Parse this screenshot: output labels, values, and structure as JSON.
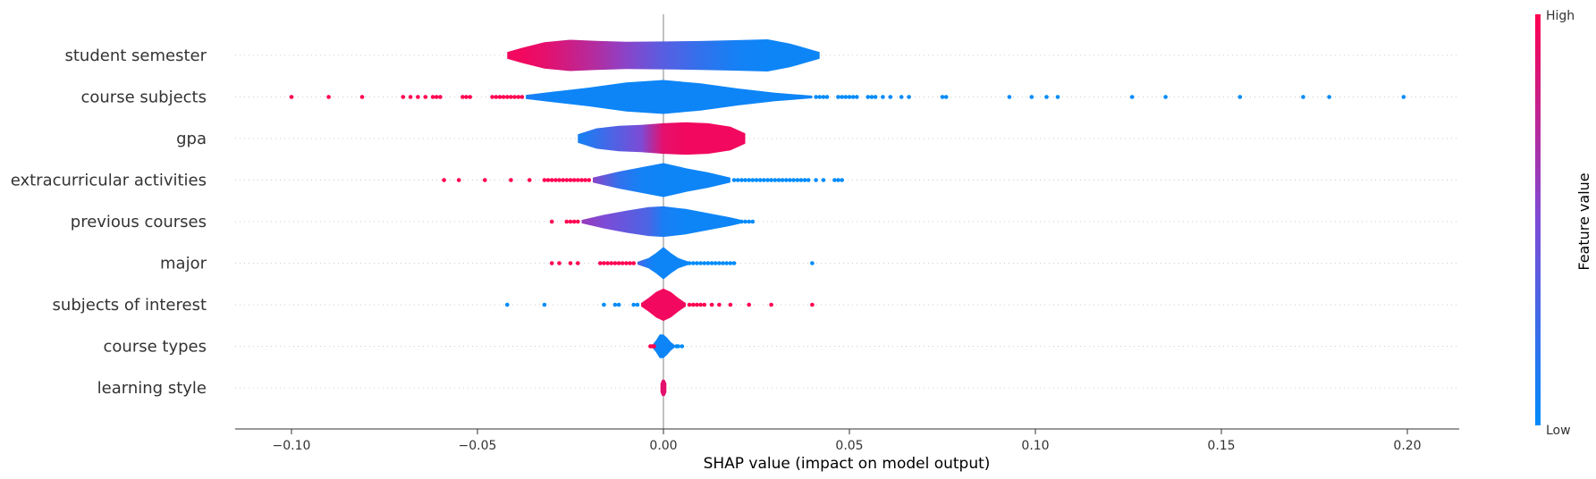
{
  "chart_data": {
    "type": "violin",
    "xlabel": "SHAP value (impact on model output)",
    "xlim": [
      -0.115,
      0.215
    ],
    "x_ticks": [
      "−0.10",
      "−0.05",
      "0.00",
      "0.05",
      "0.10",
      "0.15",
      "0.20"
    ],
    "x_tick_values": [
      -0.1,
      -0.05,
      0.0,
      0.05,
      0.1,
      0.15,
      0.2
    ],
    "colorbar": {
      "high_label": "High",
      "low_label": "Low",
      "title": "Feature value",
      "high_color": "#ff0051",
      "low_color": "#008bfb"
    },
    "features": [
      {
        "name": "student semester",
        "violin": {
          "xs": [
            -0.042,
            -0.038,
            -0.032,
            -0.025,
            -0.018,
            -0.01,
            0.0,
            0.01,
            0.02,
            0.028,
            0.034,
            0.038,
            0.042
          ],
          "widths": [
            0.2,
            0.45,
            0.78,
            0.92,
            0.86,
            0.8,
            0.82,
            0.85,
            0.9,
            0.95,
            0.7,
            0.45,
            0.2
          ],
          "colors": [
            0.95,
            0.95,
            0.9,
            0.8,
            0.7,
            0.55,
            0.35,
            0.2,
            0.08,
            0.05,
            0.05,
            0.05,
            0.05
          ]
        },
        "points": []
      },
      {
        "name": "course subjects",
        "violin": {
          "xs": [
            -0.037,
            -0.03,
            -0.02,
            -0.01,
            0.0,
            0.01,
            0.02,
            0.03,
            0.04
          ],
          "widths": [
            0.12,
            0.3,
            0.55,
            0.85,
            1.0,
            0.8,
            0.5,
            0.25,
            0.08
          ],
          "colors": [
            0.1,
            0.05,
            0.05,
            0.05,
            0.05,
            0.05,
            0.05,
            0.05,
            0.05
          ]
        },
        "points": [
          [
            -0.1,
            1
          ],
          [
            -0.09,
            1
          ],
          [
            -0.081,
            1
          ],
          [
            -0.07,
            1
          ],
          [
            -0.068,
            1
          ],
          [
            -0.066,
            1
          ],
          [
            -0.064,
            1
          ],
          [
            -0.062,
            1
          ],
          [
            -0.061,
            1
          ],
          [
            -0.06,
            1
          ],
          [
            -0.054,
            1
          ],
          [
            -0.053,
            1
          ],
          [
            -0.052,
            1
          ],
          [
            -0.046,
            1
          ],
          [
            -0.045,
            1
          ],
          [
            -0.044,
            1
          ],
          [
            -0.043,
            1
          ],
          [
            -0.042,
            1
          ],
          [
            -0.041,
            1
          ],
          [
            -0.04,
            1
          ],
          [
            -0.039,
            1
          ],
          [
            -0.038,
            1
          ],
          [
            0.041,
            0
          ],
          [
            0.042,
            0
          ],
          [
            0.043,
            0
          ],
          [
            0.044,
            0
          ],
          [
            0.047,
            0
          ],
          [
            0.048,
            0
          ],
          [
            0.049,
            0
          ],
          [
            0.05,
            0
          ],
          [
            0.051,
            0
          ],
          [
            0.052,
            0
          ],
          [
            0.055,
            0
          ],
          [
            0.056,
            0
          ],
          [
            0.057,
            0
          ],
          [
            0.059,
            0
          ],
          [
            0.061,
            0
          ],
          [
            0.064,
            0
          ],
          [
            0.066,
            0
          ],
          [
            0.075,
            0
          ],
          [
            0.076,
            0
          ],
          [
            0.093,
            0
          ],
          [
            0.099,
            0
          ],
          [
            0.103,
            0
          ],
          [
            0.106,
            0
          ],
          [
            0.126,
            0
          ],
          [
            0.135,
            0
          ],
          [
            0.155,
            0
          ],
          [
            0.172,
            0
          ],
          [
            0.179,
            0
          ],
          [
            0.199,
            0
          ]
        ]
      },
      {
        "name": "gpa",
        "violin": {
          "xs": [
            -0.023,
            -0.018,
            -0.012,
            -0.006,
            0.0,
            0.006,
            0.012,
            0.018,
            0.022
          ],
          "widths": [
            0.25,
            0.6,
            0.75,
            0.8,
            0.9,
            0.95,
            0.9,
            0.7,
            0.3
          ],
          "colors": [
            0.08,
            0.2,
            0.35,
            0.5,
            0.9,
            0.95,
            0.95,
            0.95,
            0.95
          ]
        },
        "points": []
      },
      {
        "name": "extracurricular activities",
        "violin": {
          "xs": [
            -0.019,
            -0.012,
            -0.006,
            0.0,
            0.006,
            0.012,
            0.018
          ],
          "widths": [
            0.15,
            0.5,
            0.75,
            1.0,
            0.7,
            0.45,
            0.15
          ],
          "colors": [
            0.55,
            0.2,
            0.08,
            0.05,
            0.05,
            0.05,
            0.05
          ]
        },
        "points": [
          [
            -0.059,
            1
          ],
          [
            -0.055,
            1
          ],
          [
            -0.048,
            1
          ],
          [
            -0.041,
            1
          ],
          [
            -0.036,
            1
          ],
          [
            -0.032,
            1
          ],
          [
            -0.031,
            1
          ],
          [
            -0.03,
            1
          ],
          [
            -0.029,
            1
          ],
          [
            -0.028,
            1
          ],
          [
            -0.027,
            1
          ],
          [
            -0.026,
            1
          ],
          [
            -0.025,
            1
          ],
          [
            -0.024,
            1
          ],
          [
            -0.023,
            1
          ],
          [
            -0.022,
            1
          ],
          [
            -0.021,
            1
          ],
          [
            -0.02,
            1
          ],
          [
            0.019,
            0
          ],
          [
            0.02,
            0
          ],
          [
            0.021,
            0
          ],
          [
            0.022,
            0
          ],
          [
            0.023,
            0
          ],
          [
            0.024,
            0
          ],
          [
            0.025,
            0
          ],
          [
            0.026,
            0
          ],
          [
            0.027,
            0
          ],
          [
            0.028,
            0
          ],
          [
            0.029,
            0
          ],
          [
            0.03,
            0
          ],
          [
            0.031,
            0
          ],
          [
            0.032,
            0
          ],
          [
            0.033,
            0
          ],
          [
            0.034,
            0
          ],
          [
            0.035,
            0
          ],
          [
            0.036,
            0
          ],
          [
            0.037,
            0
          ],
          [
            0.038,
            0
          ],
          [
            0.039,
            0
          ],
          [
            0.041,
            0
          ],
          [
            0.043,
            0
          ],
          [
            0.046,
            0
          ],
          [
            0.047,
            0
          ],
          [
            0.048,
            0
          ]
        ]
      },
      {
        "name": "previous courses",
        "violin": {
          "xs": [
            -0.022,
            -0.016,
            -0.01,
            -0.004,
            0.0,
            0.006,
            0.012,
            0.018,
            0.021
          ],
          "widths": [
            0.1,
            0.4,
            0.65,
            0.85,
            0.9,
            0.75,
            0.5,
            0.25,
            0.1
          ],
          "colors": [
            0.6,
            0.5,
            0.4,
            0.3,
            0.1,
            0.05,
            0.05,
            0.05,
            0.05
          ]
        },
        "points": [
          [
            -0.03,
            1
          ],
          [
            -0.026,
            1
          ],
          [
            -0.025,
            1
          ],
          [
            -0.024,
            1
          ],
          [
            -0.023,
            1
          ],
          [
            0.02,
            0
          ],
          [
            0.021,
            0
          ],
          [
            0.022,
            0
          ],
          [
            0.023,
            0
          ],
          [
            0.024,
            0
          ]
        ]
      },
      {
        "name": "major",
        "violin": {
          "xs": [
            -0.007,
            -0.004,
            -0.002,
            0.0,
            0.002,
            0.004,
            0.007
          ],
          "widths": [
            0.08,
            0.3,
            0.6,
            0.95,
            0.6,
            0.3,
            0.08
          ],
          "colors": [
            0.3,
            0.1,
            0.05,
            0.05,
            0.05,
            0.05,
            0.05
          ]
        },
        "points": [
          [
            -0.03,
            1
          ],
          [
            -0.028,
            1
          ],
          [
            -0.025,
            1
          ],
          [
            -0.023,
            1
          ],
          [
            -0.017,
            1
          ],
          [
            -0.016,
            1
          ],
          [
            -0.015,
            1
          ],
          [
            -0.014,
            1
          ],
          [
            -0.013,
            1
          ],
          [
            -0.012,
            1
          ],
          [
            -0.011,
            1
          ],
          [
            -0.01,
            1
          ],
          [
            -0.009,
            1
          ],
          [
            -0.008,
            1
          ],
          [
            0.007,
            0
          ],
          [
            0.008,
            0
          ],
          [
            0.009,
            0
          ],
          [
            0.01,
            0
          ],
          [
            0.011,
            0
          ],
          [
            0.012,
            0
          ],
          [
            0.013,
            0
          ],
          [
            0.014,
            0
          ],
          [
            0.015,
            0
          ],
          [
            0.016,
            0
          ],
          [
            0.017,
            0
          ],
          [
            0.018,
            0
          ],
          [
            0.019,
            0
          ],
          [
            0.04,
            0
          ]
        ]
      },
      {
        "name": "subjects of interest",
        "violin": {
          "xs": [
            -0.006,
            -0.004,
            -0.002,
            0.0,
            0.002,
            0.004,
            0.006
          ],
          "widths": [
            0.1,
            0.4,
            0.75,
            0.95,
            0.75,
            0.4,
            0.1
          ],
          "colors": [
            0.95,
            0.95,
            0.95,
            0.95,
            0.95,
            0.95,
            0.95
          ]
        },
        "points": [
          [
            -0.042,
            0
          ],
          [
            -0.032,
            0
          ],
          [
            -0.016,
            0
          ],
          [
            -0.013,
            0
          ],
          [
            -0.012,
            0
          ],
          [
            -0.008,
            0
          ],
          [
            -0.007,
            0
          ],
          [
            0.007,
            1
          ],
          [
            0.008,
            1
          ],
          [
            0.009,
            1
          ],
          [
            0.01,
            1
          ],
          [
            0.011,
            1
          ],
          [
            0.013,
            1
          ],
          [
            0.015,
            1
          ],
          [
            0.018,
            1
          ],
          [
            0.023,
            1
          ],
          [
            0.029,
            1
          ],
          [
            0.04,
            1
          ]
        ]
      },
      {
        "name": "course types",
        "violin": {
          "xs": [
            -0.003,
            -0.002,
            -0.001,
            0.0,
            0.001,
            0.002,
            0.003
          ],
          "widths": [
            0.08,
            0.35,
            0.7,
            0.7,
            0.5,
            0.25,
            0.08
          ],
          "colors": [
            0.1,
            0.05,
            0.05,
            0.05,
            0.05,
            0.05,
            0.05
          ]
        },
        "points": [
          [
            -0.0035,
            1
          ],
          [
            -0.003,
            1
          ],
          [
            -0.0025,
            1
          ],
          [
            0.0035,
            0
          ],
          [
            0.004,
            0
          ],
          [
            0.005,
            0
          ]
        ]
      },
      {
        "name": "learning style",
        "violin": {
          "xs": [
            -0.0008,
            -0.0004,
            0.0,
            0.0004,
            0.0008
          ],
          "widths": [
            0.25,
            0.45,
            0.5,
            0.45,
            0.25
          ],
          "colors": [
            0.9,
            0.9,
            0.9,
            0.9,
            0.9
          ]
        },
        "points": []
      }
    ]
  }
}
